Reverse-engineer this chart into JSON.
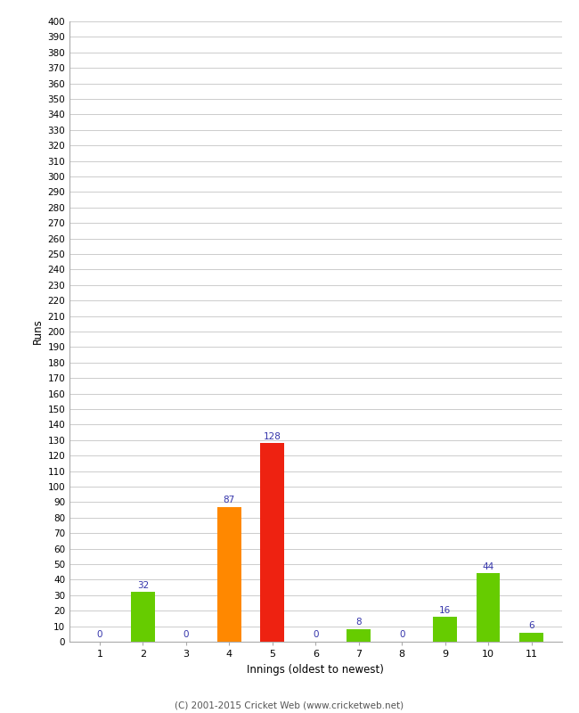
{
  "innings": [
    1,
    2,
    3,
    4,
    5,
    6,
    7,
    8,
    9,
    10,
    11
  ],
  "runs": [
    0,
    32,
    0,
    87,
    128,
    0,
    8,
    0,
    16,
    44,
    6
  ],
  "bar_colors": [
    "#66cc00",
    "#66cc00",
    "#66cc00",
    "#ff8800",
    "#ee2211",
    "#66cc00",
    "#66cc00",
    "#66cc00",
    "#66cc00",
    "#66cc00",
    "#66cc00"
  ],
  "xlabel": "Innings (oldest to newest)",
  "ylabel": "Runs",
  "ylim": [
    0,
    400
  ],
  "ytick_step": 10,
  "label_color": "#3333aa",
  "background_color": "#ffffff",
  "grid_color": "#cccccc",
  "footer": "(C) 2001-2015 Cricket Web (www.cricketweb.net)",
  "bar_width": 0.55
}
